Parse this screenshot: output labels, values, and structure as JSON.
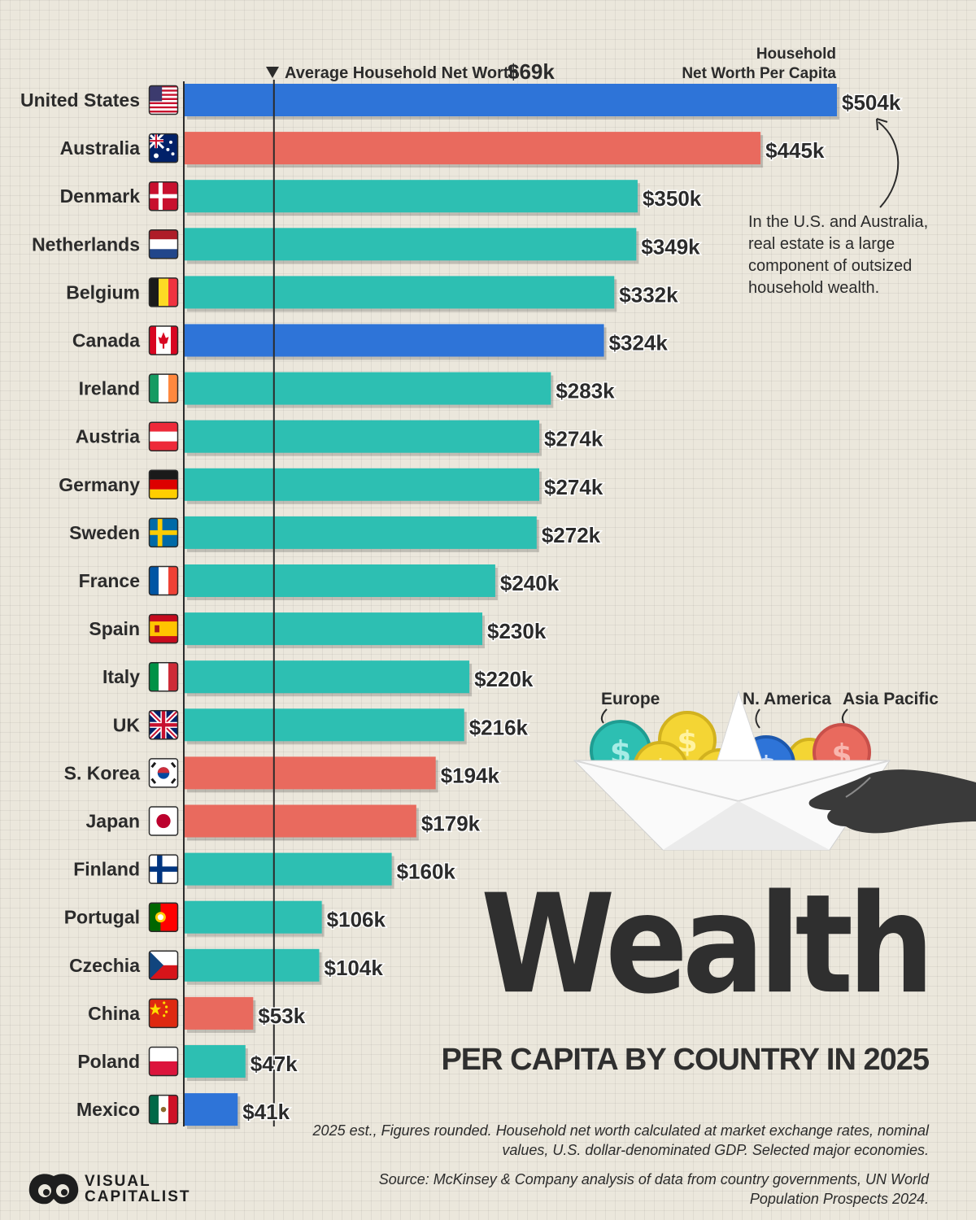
{
  "chart_data": {
    "type": "bar",
    "orientation": "horizontal",
    "title": "Wealth",
    "subtitle": "PER CAPITA BY COUNTRY IN 2025",
    "value_axis_label": "Household Net Worth Per Capita",
    "value_axis_label_lines": [
      "Household",
      "Net Worth Per Capita"
    ],
    "unit_prefix": "$",
    "unit_suffix": "k",
    "xlim": [
      0,
      504
    ],
    "average": {
      "label": "Average Household Net Worth",
      "value": 69,
      "value_label": "$69k"
    },
    "legend": [
      {
        "label": "Europe",
        "color": "#2dbfb2"
      },
      {
        "label": "N. America",
        "color": "#2e74d8"
      },
      {
        "label": "Asia Pacific",
        "color": "#e96a5e"
      }
    ],
    "categories": [
      "United States",
      "Australia",
      "Denmark",
      "Netherlands",
      "Belgium",
      "Canada",
      "Ireland",
      "Austria",
      "Germany",
      "Sweden",
      "France",
      "Spain",
      "Italy",
      "UK",
      "S. Korea",
      "Japan",
      "Finland",
      "Portugal",
      "Czechia",
      "China",
      "Poland",
      "Mexico"
    ],
    "values": [
      504,
      445,
      350,
      349,
      332,
      324,
      283,
      274,
      274,
      272,
      240,
      230,
      220,
      216,
      194,
      179,
      160,
      106,
      104,
      53,
      47,
      41
    ],
    "value_labels": [
      "$504k",
      "$445k",
      "$350k",
      "$349k",
      "$332k",
      "$324k",
      "$283k",
      "$274k",
      "$274k",
      "$272k",
      "$240k",
      "$230k",
      "$220k",
      "$216k",
      "$194k",
      "$179k",
      "$160k",
      "$106k",
      "$104k",
      "$53k",
      "$47k",
      "$41k"
    ],
    "regions": [
      "N. America",
      "Asia Pacific",
      "Europe",
      "Europe",
      "Europe",
      "N. America",
      "Europe",
      "Europe",
      "Europe",
      "Europe",
      "Europe",
      "Europe",
      "Europe",
      "Europe",
      "Asia Pacific",
      "Asia Pacific",
      "Europe",
      "Europe",
      "Europe",
      "Asia Pacific",
      "Europe",
      "N. America"
    ],
    "flags": [
      "us",
      "au",
      "dk",
      "nl",
      "be",
      "ca",
      "ie",
      "at",
      "de",
      "se",
      "fr",
      "es",
      "it",
      "uk",
      "kr",
      "jp",
      "fi",
      "pt",
      "cz",
      "cn",
      "pl",
      "mx"
    ],
    "annotation": "In the U.S. and Australia, real estate is a large component of outsized household wealth."
  },
  "footer": {
    "note": "2025 est., Figures rounded. Household net worth calculated at market exchange rates, nominal values, U.S. dollar-denominated GDP. Selected major economies.",
    "source": "Source: McKinsey & Company analysis of data from country governments, UN World Population Prospects 2024.",
    "logo_line1": "VISUAL",
    "logo_line2": "CAPITALIST"
  },
  "illustration": {
    "icons": [
      "paper-boat-icon",
      "coin-icon",
      "hand-icon",
      "curved-arrow-icon"
    ]
  }
}
